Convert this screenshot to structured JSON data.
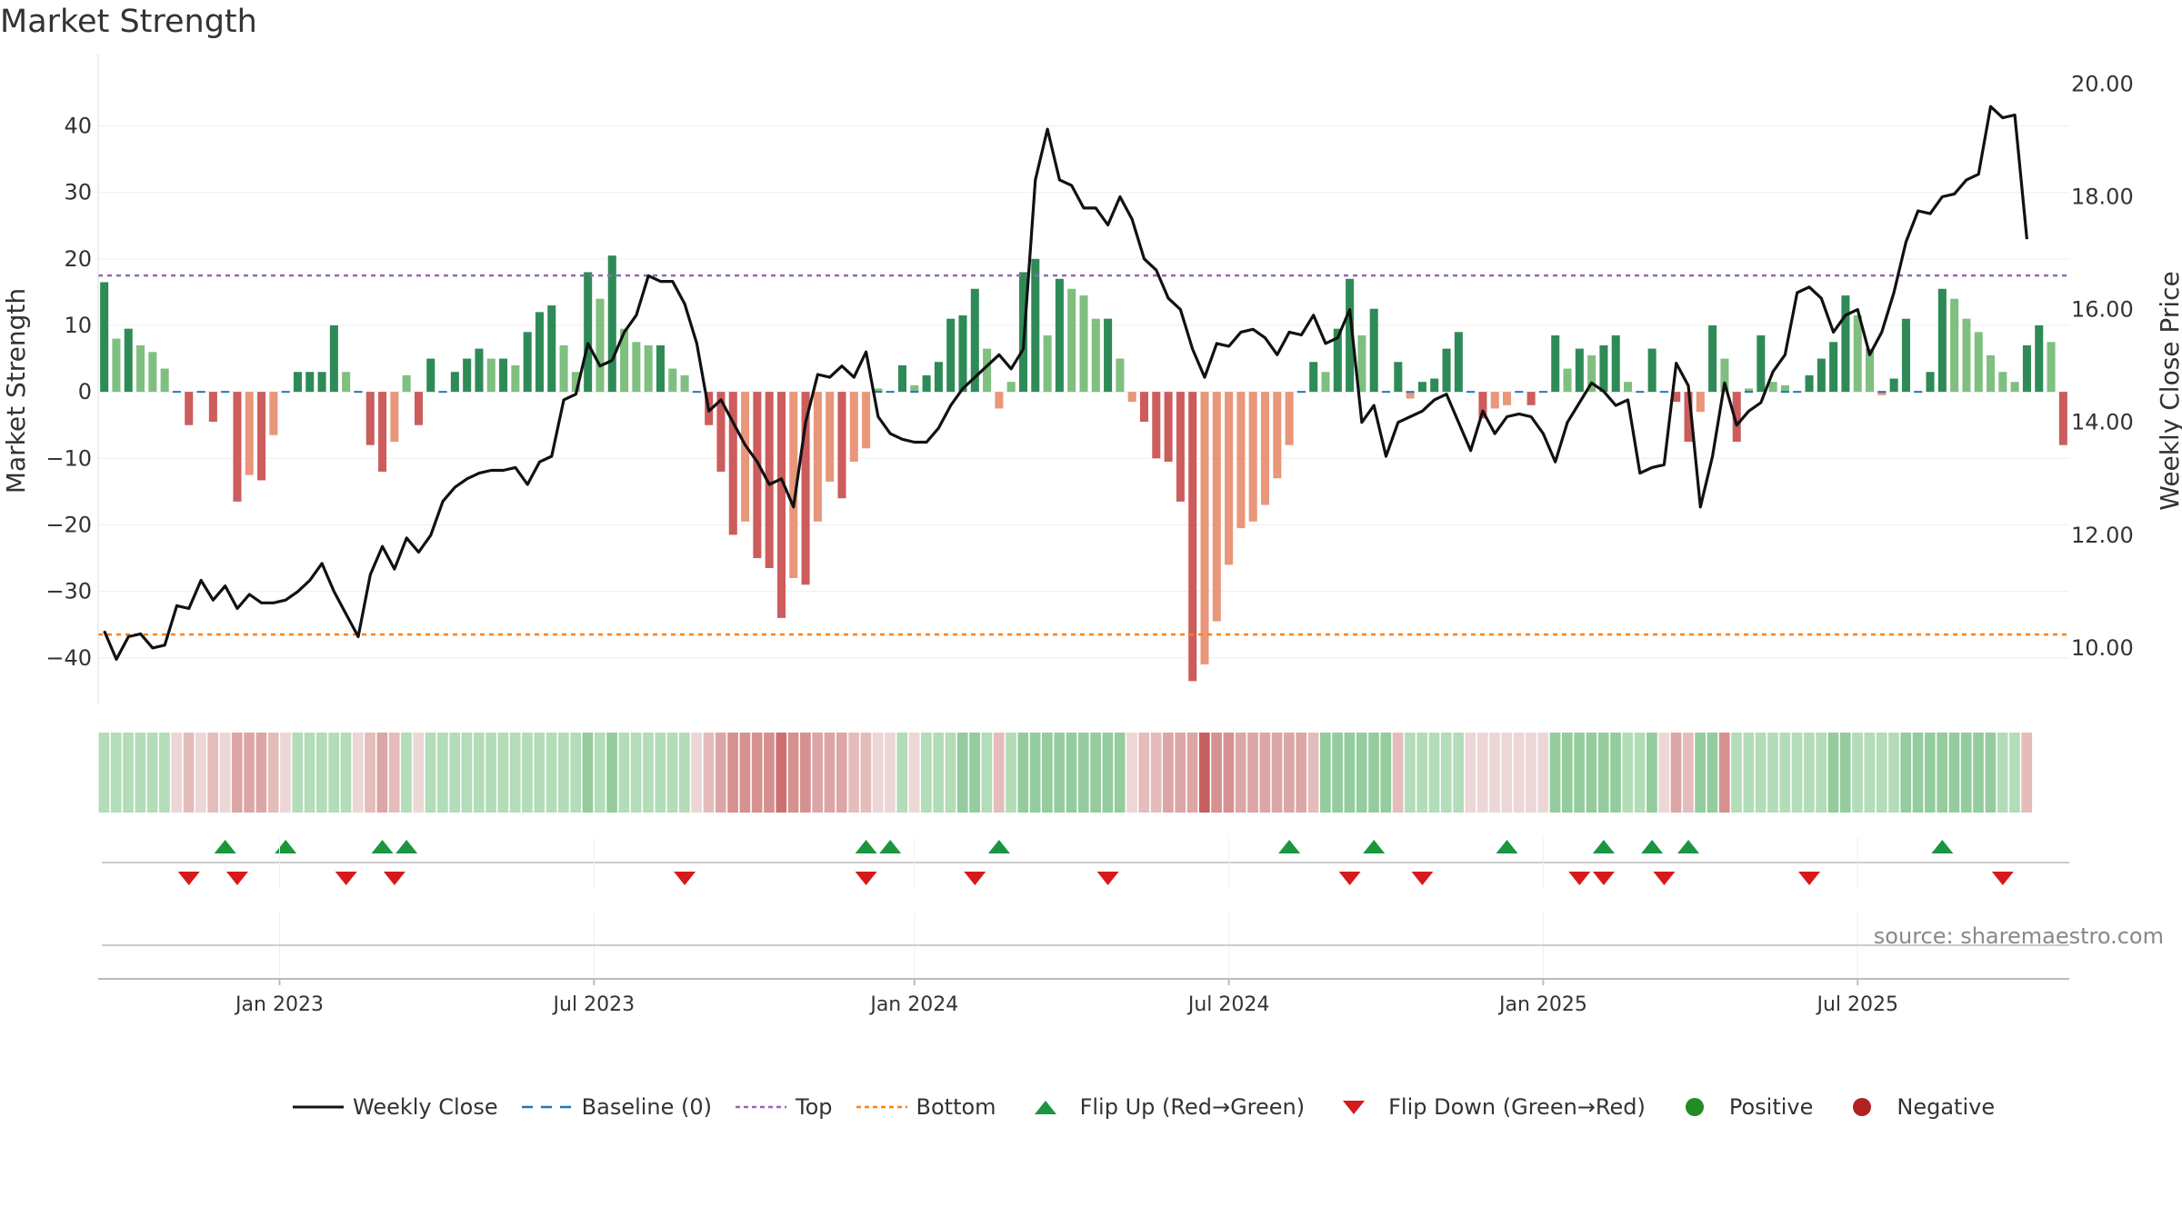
{
  "title": "Market Strength",
  "source": "source: sharemaestro.com",
  "colors": {
    "strong_green": "#2e8b57",
    "light_green": "#7fbf7f",
    "strong_red": "#cd5c5c",
    "light_red": "#e9967a",
    "price": "#111111",
    "baseline": "#1f77b4",
    "top": "#9467bd",
    "bottom": "#ff7f0e",
    "flip_up": "#1a9641",
    "flip_down": "#d7191c",
    "positive": "#228b22",
    "negative": "#b22222"
  },
  "legend": [
    {
      "label": "Weekly Close",
      "icon": "solid-line",
      "color": "#111111"
    },
    {
      "label": "Baseline (0)",
      "icon": "dashed-line",
      "color": "#1f77b4"
    },
    {
      "label": "Top",
      "icon": "dotted-line",
      "color": "#9467bd"
    },
    {
      "label": "Bottom",
      "icon": "dotted-line",
      "color": "#ff7f0e"
    },
    {
      "label": "Flip Up (Red→Green)",
      "icon": "triangle-up",
      "color": "#1a9641"
    },
    {
      "label": "Flip Down (Green→Red)",
      "icon": "triangle-down",
      "color": "#d7191c"
    },
    {
      "label": "Positive",
      "icon": "circle",
      "color": "#228b22"
    },
    {
      "label": "Negative",
      "icon": "circle",
      "color": "#b22222"
    }
  ],
  "chart_data": {
    "type": "bar",
    "title": "Market Strength",
    "ylabel": "Market Strength",
    "y2label": "Weekly Close Price",
    "ylim": [
      -47,
      48
    ],
    "y2lim": [
      9.0,
      20.2
    ],
    "yticks": [
      40,
      30,
      20,
      10,
      0,
      -10,
      -20,
      -30,
      -40
    ],
    "ytick_labels": [
      "40",
      "30",
      "20",
      "10",
      "0",
      "−10",
      "−20",
      "−30",
      "−40"
    ],
    "y2ticks": [
      20,
      18,
      16,
      14,
      12,
      10
    ],
    "y2tick_labels": [
      "20.00",
      "18.00",
      "16.00",
      "14.00",
      "12.00",
      "10.00"
    ],
    "xtick_positions": [
      15,
      41,
      67.5,
      93.5,
      119.5,
      145.5
    ],
    "xtick_labels": [
      "Jan 2023",
      "Jul 2023",
      "Jan 2024",
      "Jul 2024",
      "Jan 2025",
      "Jul 2025"
    ],
    "grid": true,
    "top_line": 17.5,
    "bottom_line": -36.5,
    "baseline": 0,
    "n_weeks": 158,
    "series": [
      {
        "name": "Market Strength",
        "kind": "bar",
        "values": [
          16.5,
          8,
          9.5,
          7,
          6,
          3.5,
          0,
          -5,
          0,
          -4.5,
          0,
          -16.5,
          -12.5,
          -13.3,
          -6.5,
          0,
          3,
          3,
          3,
          10,
          3,
          0,
          -8,
          -12,
          -7.5,
          2.5,
          -5,
          5,
          0,
          3,
          5,
          6.5,
          5,
          5,
          4,
          9,
          12,
          13,
          7,
          3,
          18,
          14,
          20.5,
          9.5,
          7.5,
          7,
          7,
          3.5,
          2.5,
          0,
          -5,
          -12,
          -21.5,
          -19.5,
          -25,
          -26.5,
          -34,
          -28,
          -29,
          -19.5,
          -13.5,
          -16,
          -10.5,
          -8.5,
          0.5,
          0,
          4,
          1,
          2.5,
          4.5,
          11,
          11.5,
          15.5,
          6.5,
          -2.5,
          1.5,
          18,
          20,
          8.5,
          17,
          15.5,
          14.5,
          11,
          11,
          5,
          -1.5,
          -4.5,
          -10,
          -10.5,
          -16.5,
          -43.5,
          -41,
          -34.5,
          -26,
          -20.5,
          -19.5,
          -17,
          -13,
          -8,
          0,
          4.5,
          3,
          9.5,
          17,
          8.5,
          12.5,
          0,
          4.5,
          -1,
          1.5,
          2,
          6.5,
          9,
          0,
          -4,
          -2.5,
          -2,
          0,
          -2,
          0,
          8.5,
          3.5,
          6.5,
          5.5,
          7,
          8.5,
          1.5,
          0,
          6.5,
          0,
          -1.5,
          -7.5,
          -3,
          10,
          5,
          -7.5,
          0.5,
          8.5,
          1.5,
          1,
          0,
          2.5,
          5,
          7.5,
          14.5,
          11.5,
          6.5,
          -0.5,
          2,
          11,
          0,
          3,
          15.5,
          14,
          11,
          9,
          5.5,
          3,
          1.5,
          7,
          10,
          7.5,
          -8
        ]
      },
      {
        "name": "Weekly Close",
        "kind": "line",
        "axis": "right",
        "values": [
          10.3,
          9.8,
          10.2,
          10.25,
          10.0,
          10.05,
          10.75,
          10.7,
          11.2,
          10.85,
          11.1,
          10.7,
          10.95,
          10.8,
          10.8,
          10.85,
          11.0,
          11.2,
          11.5,
          11.0,
          10.6,
          10.2,
          11.3,
          11.8,
          11.4,
          11.95,
          11.7,
          12.0,
          12.6,
          12.85,
          13.0,
          13.1,
          13.15,
          13.15,
          13.2,
          12.9,
          13.3,
          13.4,
          14.4,
          14.5,
          15.4,
          15.0,
          15.1,
          15.6,
          15.9,
          16.6,
          16.5,
          16.5,
          16.1,
          15.4,
          14.2,
          14.4,
          14.0,
          13.6,
          13.3,
          12.9,
          13.0,
          12.5,
          14.0,
          14.85,
          14.8,
          15.0,
          14.8,
          15.25,
          14.1,
          13.8,
          13.7,
          13.65,
          13.65,
          13.9,
          14.3,
          14.6,
          14.8,
          15.0,
          15.2,
          14.95,
          15.3,
          18.3,
          19.2,
          18.3,
          18.2,
          17.8,
          17.8,
          17.5,
          18.0,
          17.6,
          16.9,
          16.7,
          16.2,
          16.0,
          15.3,
          14.8,
          15.4,
          15.35,
          15.6,
          15.65,
          15.5,
          15.2,
          15.6,
          15.55,
          15.9,
          15.4,
          15.5,
          16.0,
          14.0,
          14.3,
          13.4,
          14.0,
          14.1,
          14.2,
          14.4,
          14.5,
          14.0,
          13.5,
          14.2,
          13.8,
          14.1,
          14.15,
          14.1,
          13.8,
          13.3,
          14.0,
          14.35,
          14.7,
          14.55,
          14.3,
          14.4,
          13.1,
          13.2,
          13.25,
          15.05,
          14.65,
          12.5,
          13.4,
          14.7,
          13.95,
          14.2,
          14.35,
          14.9,
          15.2,
          16.3,
          16.4,
          16.2,
          15.6,
          15.9,
          16.0,
          15.2,
          15.6,
          16.3,
          17.2,
          17.75,
          17.7,
          18.0,
          18.05,
          18.3,
          18.4,
          19.6,
          19.4,
          19.45,
          17.25
        ]
      }
    ],
    "strength_band": [
      1,
      1,
      1,
      1,
      1,
      1,
      2,
      3,
      2,
      3,
      2,
      4,
      4,
      4,
      3,
      2,
      1,
      1,
      1,
      1,
      1,
      2,
      3,
      4,
      3,
      1,
      2,
      1,
      1,
      1,
      1,
      1,
      1,
      1,
      1,
      1,
      1,
      1,
      1,
      1,
      6,
      1,
      6,
      1,
      1,
      1,
      1,
      1,
      1,
      2,
      3,
      4,
      5,
      5,
      5,
      5,
      7,
      5,
      5,
      4,
      4,
      4,
      3,
      3,
      2,
      2,
      1,
      2,
      1,
      1,
      1,
      6,
      6,
      1,
      3,
      1,
      6,
      6,
      6,
      6,
      6,
      6,
      6,
      6,
      6,
      2,
      3,
      3,
      4,
      4,
      4,
      8,
      5,
      5,
      4,
      4,
      4,
      4,
      4,
      4,
      3,
      6,
      6,
      6,
      6,
      6,
      6,
      3,
      1,
      1,
      1,
      1,
      1,
      2,
      2,
      2,
      2,
      2,
      2,
      2,
      6,
      6,
      6,
      6,
      6,
      6,
      1,
      1,
      6,
      2,
      4,
      3,
      6,
      6,
      5,
      1,
      1,
      1,
      1,
      1,
      1,
      1,
      1,
      6,
      6,
      1,
      1,
      1,
      1,
      6,
      6,
      6,
      6,
      6,
      6,
      6,
      6,
      1,
      1,
      3
    ],
    "flip_up_weeks": [
      10,
      15,
      23,
      25,
      63,
      65,
      74,
      98,
      105,
      116,
      124,
      128,
      131,
      152
    ],
    "flip_down_weeks": [
      7,
      11,
      20,
      24,
      48,
      63,
      72,
      83,
      103,
      109,
      122,
      124,
      129,
      141,
      157
    ],
    "annotations": [
      "source: sharemaestro.com"
    ]
  }
}
